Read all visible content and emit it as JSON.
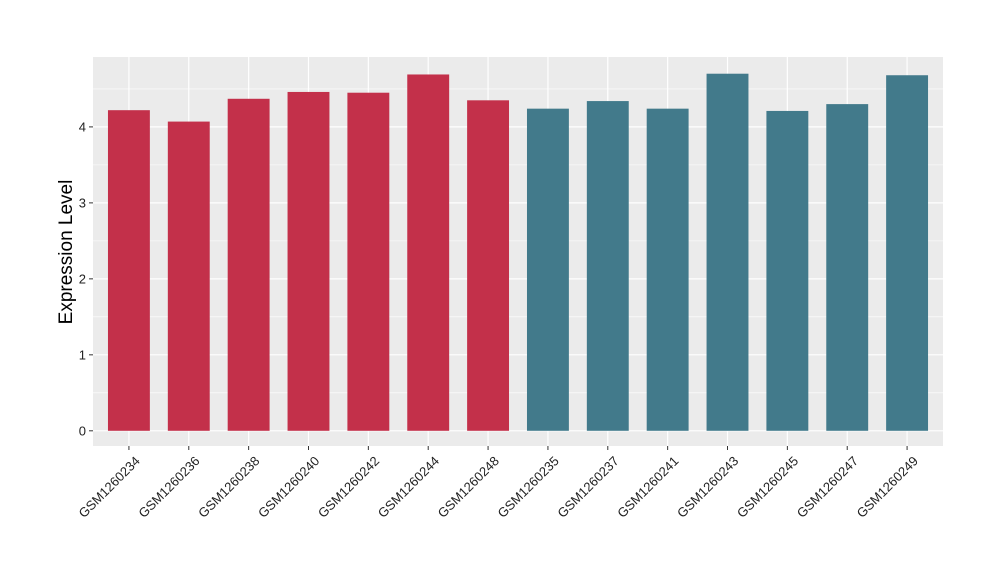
{
  "chart_data": {
    "type": "bar",
    "title": "",
    "xlabel": "",
    "ylabel": "Expression Level",
    "ylim": [
      -0.2,
      4.92
    ],
    "yticks": [
      0,
      1,
      2,
      3,
      4
    ],
    "grid": true,
    "panel_background": "#ebebeb",
    "categories": [
      "GSM1260234",
      "GSM1260236",
      "GSM1260238",
      "GSM1260240",
      "GSM1260242",
      "GSM1260244",
      "GSM1260248",
      "GSM1260235",
      "GSM1260237",
      "GSM1260241",
      "GSM1260243",
      "GSM1260245",
      "GSM1260247",
      "GSM1260249"
    ],
    "values": [
      4.22,
      4.07,
      4.37,
      4.46,
      4.45,
      4.69,
      4.35,
      4.24,
      4.34,
      4.24,
      4.7,
      4.21,
      4.3,
      4.68
    ],
    "bar_colors": [
      "#c3304a",
      "#c3304a",
      "#c3304a",
      "#c3304a",
      "#c3304a",
      "#c3304a",
      "#c3304a",
      "#427a8b",
      "#427a8b",
      "#427a8b",
      "#427a8b",
      "#427a8b",
      "#427a8b",
      "#427a8b"
    ]
  }
}
